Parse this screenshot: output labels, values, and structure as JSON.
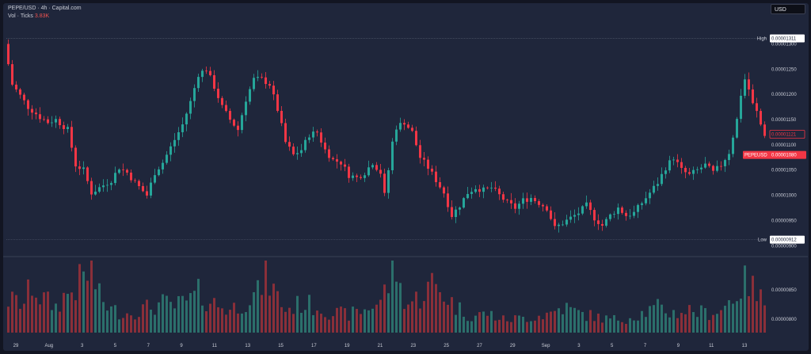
{
  "header": {
    "title": "PEPE/USD · 4h · Capital.com",
    "vol_label": "Vol · Ticks",
    "vol_value": "3.83K"
  },
  "currency_button": "USD",
  "markers": {
    "high_label": "High",
    "high_value": "0.00001311",
    "low_label": "Low",
    "low_value": "0.00000912",
    "last_value": "0.00001121",
    "symbol_label": "PEPEUSD",
    "symbol_value": "0.00001080"
  },
  "colors": {
    "background": "#1f263b",
    "up": "#26a69a",
    "down": "#f23645",
    "vol_up": "#2b6f6b",
    "vol_down": "#8a2f39",
    "text": "#c9ccd6"
  },
  "chart_data": {
    "type": "candlestick",
    "price_axis": {
      "min": 8.8e-06,
      "max": 1.34e-05,
      "ticks": [
        "0.00001300",
        "0.00001250",
        "0.00001200",
        "0.00001150",
        "0.00001100",
        "0.00001050",
        "0.00001000",
        "0.00000950",
        "0.00000900"
      ]
    },
    "volume_axis": {
      "ticks": [
        "0.00000850",
        "0.00000800"
      ]
    },
    "x_ticks": [
      "29",
      "Aug",
      "3",
      "5",
      "7",
      "9",
      "11",
      "13",
      "15",
      "17",
      "19",
      "21",
      "23",
      "25",
      "27",
      "29",
      "Sep",
      "3",
      "5",
      "7",
      "9",
      "11",
      "13"
    ],
    "close_path": [
      [
        0,
        13.0
      ],
      [
        2,
        12.2
      ],
      [
        6,
        11.75
      ],
      [
        9,
        11.55
      ],
      [
        11,
        11.45
      ],
      [
        13,
        11.5
      ],
      [
        16,
        11.3
      ],
      [
        18,
        10.6
      ],
      [
        20,
        10.5
      ],
      [
        22,
        10.05
      ],
      [
        24,
        10.15
      ],
      [
        27,
        10.3
      ],
      [
        29,
        10.55
      ],
      [
        31,
        10.45
      ],
      [
        33,
        10.25
      ],
      [
        36,
        10.0
      ],
      [
        38,
        10.45
      ],
      [
        40,
        10.65
      ],
      [
        42,
        10.95
      ],
      [
        45,
        11.4
      ],
      [
        47,
        11.85
      ],
      [
        49,
        12.4
      ],
      [
        51,
        12.5
      ],
      [
        53,
        12.15
      ],
      [
        55,
        11.75
      ],
      [
        57,
        11.5
      ],
      [
        59,
        11.3
      ],
      [
        61,
        11.9
      ],
      [
        63,
        12.3
      ],
      [
        65,
        12.3
      ],
      [
        67,
        12.2
      ],
      [
        69,
        11.7
      ],
      [
        71,
        11.05
      ],
      [
        73,
        10.8
      ],
      [
        75,
        10.9
      ],
      [
        77,
        11.2
      ],
      [
        79,
        11.25
      ],
      [
        81,
        10.9
      ],
      [
        83,
        10.7
      ],
      [
        85,
        10.65
      ],
      [
        87,
        10.4
      ],
      [
        89,
        10.35
      ],
      [
        91,
        10.45
      ],
      [
        93,
        10.65
      ],
      [
        95,
        10.45
      ],
      [
        96,
        10.0
      ],
      [
        97,
        10.5
      ],
      [
        98,
        11.05
      ],
      [
        99,
        11.35
      ],
      [
        101,
        11.45
      ],
      [
        103,
        11.25
      ],
      [
        105,
        10.75
      ],
      [
        107,
        10.55
      ],
      [
        109,
        10.3
      ],
      [
        111,
        10.05
      ],
      [
        113,
        9.6
      ],
      [
        115,
        9.8
      ],
      [
        117,
        10.05
      ],
      [
        119,
        10.15
      ],
      [
        121,
        10.1
      ],
      [
        123,
        10.15
      ],
      [
        125,
        10.0
      ],
      [
        127,
        9.85
      ],
      [
        129,
        9.75
      ],
      [
        131,
        9.9
      ],
      [
        133,
        9.95
      ],
      [
        135,
        9.85
      ],
      [
        137,
        9.75
      ],
      [
        139,
        9.35
      ],
      [
        141,
        9.45
      ],
      [
        143,
        9.55
      ],
      [
        145,
        9.65
      ],
      [
        147,
        9.8
      ],
      [
        149,
        9.55
      ],
      [
        151,
        9.4
      ],
      [
        153,
        9.6
      ],
      [
        155,
        9.75
      ],
      [
        157,
        9.6
      ],
      [
        159,
        9.65
      ],
      [
        161,
        9.85
      ],
      [
        163,
        10.05
      ],
      [
        165,
        10.25
      ],
      [
        167,
        10.55
      ],
      [
        169,
        10.75
      ],
      [
        171,
        10.5
      ],
      [
        173,
        10.4
      ],
      [
        175,
        10.5
      ],
      [
        177,
        10.6
      ],
      [
        179,
        10.45
      ],
      [
        181,
        10.6
      ],
      [
        183,
        10.85
      ],
      [
        185,
        11.5
      ],
      [
        186,
        12.0
      ],
      [
        187,
        12.3
      ],
      [
        188,
        12.1
      ],
      [
        189,
        11.8
      ],
      [
        190,
        11.65
      ],
      [
        191,
        11.4
      ],
      [
        192,
        11.21
      ]
    ],
    "volume_profile": [
      [
        0,
        0.5
      ],
      [
        4,
        0.45
      ],
      [
        6,
        0.75
      ],
      [
        8,
        0.55
      ],
      [
        12,
        0.4
      ],
      [
        14,
        0.55
      ],
      [
        17,
        0.7
      ],
      [
        19,
        0.85
      ],
      [
        21,
        0.95
      ],
      [
        23,
        0.55
      ],
      [
        26,
        0.35
      ],
      [
        30,
        0.3
      ],
      [
        35,
        0.38
      ],
      [
        39,
        0.45
      ],
      [
        42,
        0.4
      ],
      [
        46,
        0.5
      ],
      [
        48,
        0.6
      ],
      [
        52,
        0.45
      ],
      [
        56,
        0.35
      ],
      [
        60,
        0.5
      ],
      [
        63,
        0.6
      ],
      [
        65,
        0.9
      ],
      [
        67,
        0.65
      ],
      [
        70,
        0.35
      ],
      [
        74,
        0.45
      ],
      [
        78,
        0.4
      ],
      [
        82,
        0.3
      ],
      [
        86,
        0.28
      ],
      [
        90,
        0.35
      ],
      [
        94,
        0.5
      ],
      [
        98,
        1.0
      ],
      [
        99,
        0.65
      ],
      [
        101,
        0.45
      ],
      [
        104,
        0.55
      ],
      [
        107,
        0.75
      ],
      [
        110,
        0.6
      ],
      [
        113,
        0.4
      ],
      [
        117,
        0.25
      ],
      [
        121,
        0.3
      ],
      [
        125,
        0.2
      ],
      [
        129,
        0.22
      ],
      [
        133,
        0.25
      ],
      [
        137,
        0.3
      ],
      [
        140,
        0.4
      ],
      [
        144,
        0.3
      ],
      [
        148,
        0.25
      ],
      [
        152,
        0.2
      ],
      [
        156,
        0.22
      ],
      [
        160,
        0.3
      ],
      [
        164,
        0.38
      ],
      [
        168,
        0.3
      ],
      [
        172,
        0.35
      ],
      [
        176,
        0.3
      ],
      [
        180,
        0.35
      ],
      [
        183,
        0.55
      ],
      [
        185,
        0.7
      ],
      [
        187,
        0.8
      ],
      [
        189,
        0.55
      ],
      [
        192,
        0.45
      ]
    ]
  }
}
